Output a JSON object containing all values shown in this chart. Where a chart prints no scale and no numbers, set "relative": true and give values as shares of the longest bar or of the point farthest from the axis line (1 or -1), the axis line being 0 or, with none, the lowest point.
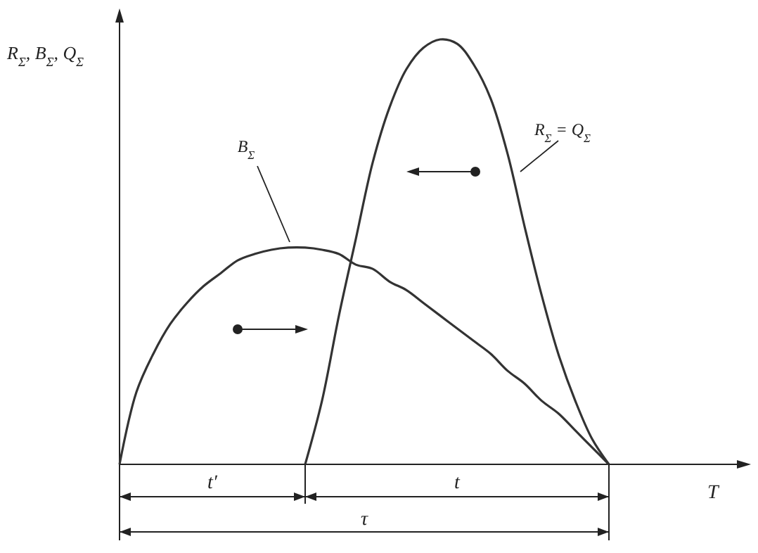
{
  "chart_data": {
    "type": "line",
    "relative": true,
    "ylabel": "R$_{Σ}$, B$_{Σ}$, Q$_{Σ}$",
    "xlabel": "T",
    "categories": [
      null,
      null,
      null,
      null,
      null,
      null,
      null,
      null,
      null,
      null,
      null,
      null,
      null,
      null,
      null,
      null,
      null,
      null,
      null,
      null,
      null,
      null,
      null,
      null,
      null,
      null,
      null,
      null,
      null,
      null
    ],
    "series": [
      {
        "name": "B$_{Σ}$",
        "color": "#333333",
        "values": [
          0,
          0.17,
          0.26,
          0.33,
          0.38,
          0.42,
          0.45,
          0.48,
          0.495,
          0.505,
          0.51,
          0.51,
          0.505,
          0.495,
          0.47,
          0.46,
          0.43,
          0.41,
          0.38,
          0.35,
          0.32,
          0.29,
          0.26,
          0.22,
          0.19,
          0.15,
          0.12,
          0.08,
          0.04,
          0
        ]
      },
      {
        "name": "R$_{Σ}$ = Q$_{Σ}$",
        "color": "#333333",
        "values": [
          null,
          null,
          null,
          null,
          null,
          null,
          null,
          null,
          null,
          null,
          null,
          0,
          0.15,
          0.35,
          0.53,
          0.71,
          0.84,
          0.93,
          0.98,
          1,
          0.99,
          0.94,
          0.86,
          0.73,
          0.56,
          0.4,
          0.26,
          0.15,
          0.06,
          0
        ]
      }
    ],
    "marker": "none",
    "line_style": "solid",
    "annotations": [
      "t′",
      "t",
      "τ"
    ]
  }
}
